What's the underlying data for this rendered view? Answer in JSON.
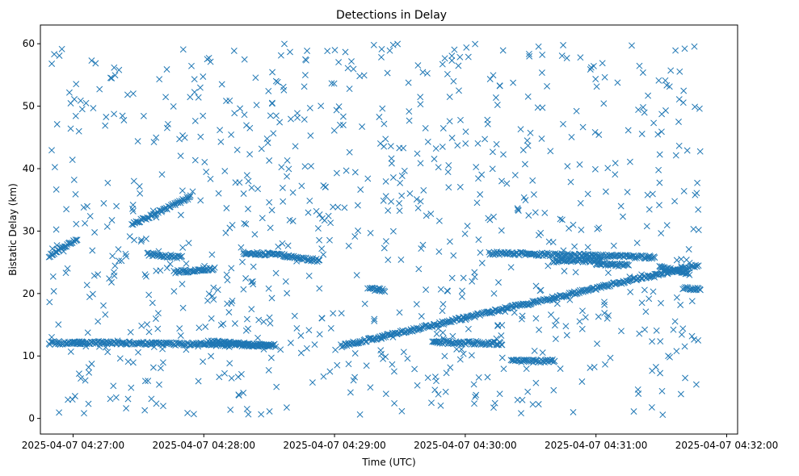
{
  "chart_data": {
    "type": "scatter",
    "title": "Detections in Delay",
    "xlabel": "Time (UTC)",
    "ylabel": "Bistatic Delay (km)",
    "marker": "x",
    "color": "#1f77b4",
    "grid": false,
    "x_is_time": true,
    "xlim": [
      "2025-04-07 04:26:45",
      "2025-04-07 04:32:05"
    ],
    "ylim": [
      -2.5,
      63
    ],
    "x_ticks": [
      "2025-04-07 04:27:00",
      "2025-04-07 04:28:00",
      "2025-04-07 04:29:00",
      "2025-04-07 04:30:00",
      "2025-04-07 04:31:00",
      "2025-04-07 04:32:00"
    ],
    "y_ticks": [
      0,
      10,
      20,
      30,
      40,
      50,
      60
    ],
    "tracks": [
      {
        "t_start": "2025-04-07 04:26:49",
        "t_end": "2025-04-07 04:27:05",
        "delay_start": 12.0,
        "delay_end": 12.1
      },
      {
        "t_start": "2025-04-07 04:27:00",
        "t_end": "2025-04-07 04:28:33",
        "delay_start": 12.2,
        "delay_end": 11.7
      },
      {
        "t_start": "2025-04-07 04:28:02",
        "t_end": "2025-04-07 04:28:30",
        "delay_start": 12.3,
        "delay_end": 11.6
      },
      {
        "t_start": "2025-04-07 04:29:03",
        "t_end": "2025-04-07 04:31:47",
        "delay_start": 11.6,
        "delay_end": 24.6
      },
      {
        "t_start": "2025-04-07 04:29:45",
        "t_end": "2025-04-07 04:30:17",
        "delay_start": 12.2,
        "delay_end": 12.0
      },
      {
        "t_start": "2025-04-07 04:30:11",
        "t_end": "2025-04-07 04:31:27",
        "delay_start": 26.5,
        "delay_end": 25.8
      },
      {
        "t_start": "2025-04-07 04:30:40",
        "t_end": "2025-04-07 04:31:02",
        "delay_start": 25.2,
        "delay_end": 25.3
      },
      {
        "t_start": "2025-04-07 04:31:00",
        "t_end": "2025-04-07 04:31:15",
        "delay_start": 24.8,
        "delay_end": 24.5
      },
      {
        "t_start": "2025-04-07 04:26:49",
        "t_end": "2025-04-07 04:27:02",
        "delay_start": 26.0,
        "delay_end": 28.8
      },
      {
        "t_start": "2025-04-07 04:27:27",
        "t_end": "2025-04-07 04:27:54",
        "delay_start": 31.0,
        "delay_end": 35.5
      },
      {
        "t_start": "2025-04-07 04:27:34",
        "t_end": "2025-04-07 04:27:50",
        "delay_start": 26.3,
        "delay_end": 25.8
      },
      {
        "t_start": "2025-04-07 04:27:47",
        "t_end": "2025-04-07 04:28:05",
        "delay_start": 23.5,
        "delay_end": 23.9
      },
      {
        "t_start": "2025-04-07 04:28:18",
        "t_end": "2025-04-07 04:28:37",
        "delay_start": 26.5,
        "delay_end": 26.2
      },
      {
        "t_start": "2025-04-07 04:28:37",
        "t_end": "2025-04-07 04:28:53",
        "delay_start": 26.0,
        "delay_end": 25.3
      },
      {
        "t_start": "2025-04-07 04:29:16",
        "t_end": "2025-04-07 04:29:23",
        "delay_start": 20.8,
        "delay_end": 20.5
      },
      {
        "t_start": "2025-04-07 04:30:21",
        "t_end": "2025-04-07 04:30:41",
        "delay_start": 9.2,
        "delay_end": 9.2
      },
      {
        "t_start": "2025-04-07 04:31:29",
        "t_end": "2025-04-07 04:31:43",
        "delay_start": 24.2,
        "delay_end": 23.2
      },
      {
        "t_start": "2025-04-07 04:31:40",
        "t_end": "2025-04-07 04:31:48",
        "delay_start": 20.8,
        "delay_end": 20.8
      }
    ],
    "clutter": {
      "t_start": "2025-04-07 04:26:49",
      "t_end": "2025-04-07 04:31:48",
      "delay_min": 0.5,
      "delay_max": 60.0,
      "count": 880
    }
  }
}
